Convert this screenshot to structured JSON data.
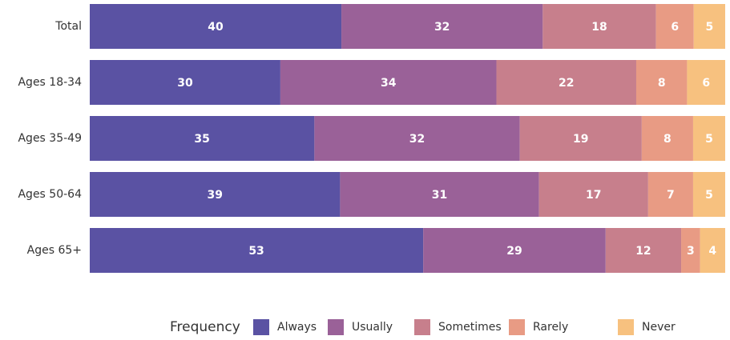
{
  "chart_data": {
    "type": "stacked_bar_horizontal",
    "categories": [
      "Total",
      "Ages 18-34",
      "Ages 35-49",
      "Ages 50-64",
      "Ages 65+"
    ],
    "legend_title": "Frequency",
    "legend_position": "bottom",
    "series": [
      {
        "name": "Always",
        "color": "#5a52a3",
        "values": [
          40,
          30,
          35,
          39,
          53
        ]
      },
      {
        "name": "Usually",
        "color": "#9a6198",
        "values": [
          32,
          34,
          32,
          31,
          29
        ]
      },
      {
        "name": "Sometimes",
        "color": "#c77f8c",
        "values": [
          18,
          22,
          19,
          17,
          12
        ]
      },
      {
        "name": "Rarely",
        "color": "#e89b84",
        "values": [
          6,
          8,
          8,
          7,
          3
        ]
      },
      {
        "name": "Never",
        "color": "#f7c17f",
        "values": [
          5,
          6,
          5,
          5,
          4
        ]
      }
    ]
  }
}
